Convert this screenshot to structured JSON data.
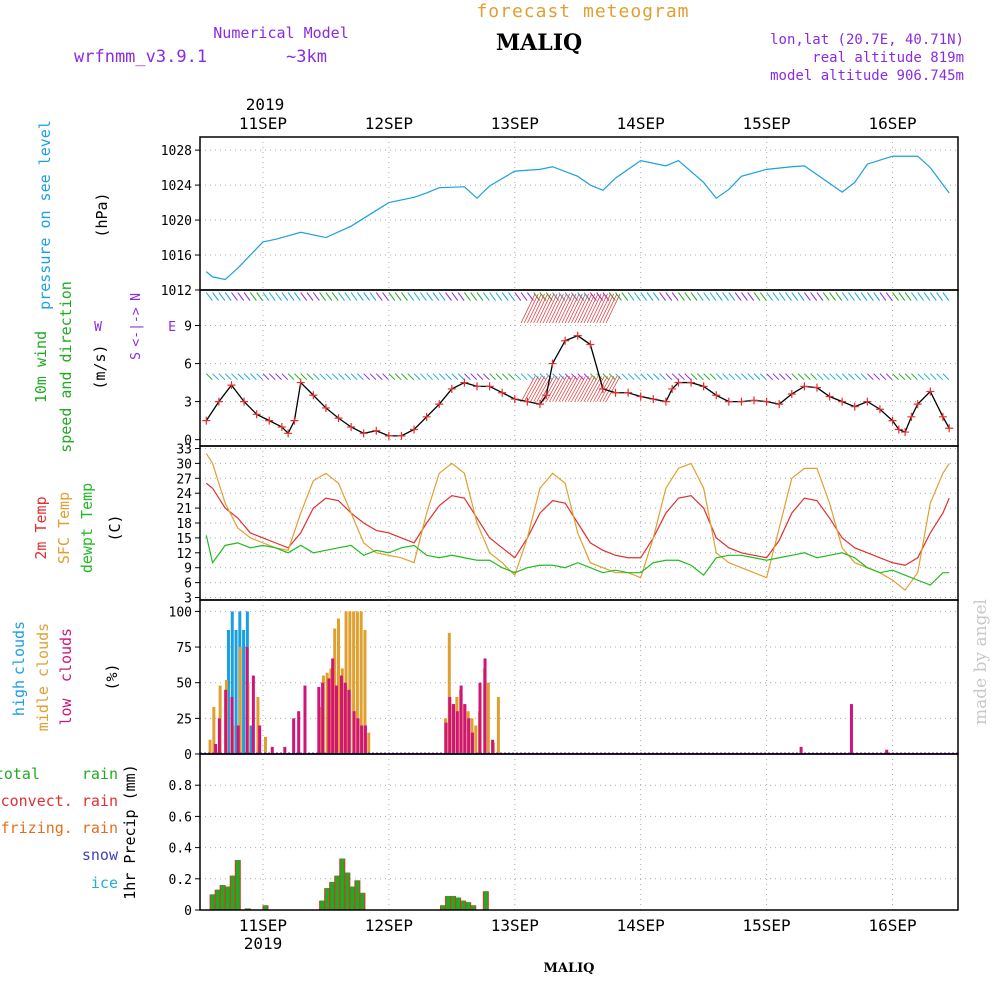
{
  "header": {
    "top_title": "forecast meteogram",
    "model_label": "Numerical Model",
    "model_name": "wrfnmm_v3.9.1",
    "resolution": "~3km",
    "station": "MALIQ",
    "coords": "lon,lat (20.7E, 40.71N)",
    "real_altitude": "real altitude 819m",
    "model_altitude": "model altitude  906.745m",
    "credit": "made by angel",
    "bottom_station": "MALIQ"
  },
  "colors": {
    "pressure": "#1aa0e0",
    "wind_label": "#22aa22",
    "compass": "#8a2be2",
    "temp_2m": "#e03030",
    "temp_sfc": "#e0a030",
    "dewpt": "#22bb22",
    "high_clouds": "#1aa0e0",
    "mid_clouds": "#e0a030",
    "low_clouds": "#d0147a",
    "total_rain": "#22aa22",
    "convect_rain": "#e03030",
    "frizing_rain": "#e07020",
    "snow": "#4040c0",
    "ice": "#20b0d0",
    "header_purple": "#8a2be2",
    "header_orange": "#e0a030",
    "credit_gray": "#c8c8c8"
  },
  "time_axis": {
    "year": "2019",
    "days": [
      "11SEP",
      "12SEP",
      "13SEP",
      "14SEP",
      "15SEP",
      "16SEP"
    ]
  },
  "chart_data": [
    {
      "type": "line",
      "panel": "pressure",
      "labels": [
        "pressure on see level",
        "(hPa)"
      ],
      "yticks": [
        "1012",
        "1016",
        "1020",
        "1024",
        "1028"
      ],
      "ylim": [
        1012,
        1029.5
      ],
      "grid": true,
      "series": [
        {
          "key": "pressure",
          "x": [
            10.55,
            10.6,
            10.7,
            10.8,
            10.9,
            11.0,
            11.1,
            11.2,
            11.3,
            11.5,
            11.7,
            11.9,
            12.0,
            12.2,
            12.3,
            12.4,
            12.6,
            12.7,
            12.8,
            13.0,
            13.2,
            13.3,
            13.5,
            13.6,
            13.7,
            13.8,
            14.0,
            14.2,
            14.3,
            14.5,
            14.6,
            14.7,
            14.8,
            15.0,
            15.2,
            15.3,
            15.5,
            15.6,
            15.7,
            15.8,
            16.0,
            16.2,
            16.3,
            16.45
          ],
          "values": [
            1014.1,
            1013.5,
            1013.2,
            1014.5,
            1016.0,
            1017.5,
            1017.8,
            1018.2,
            1018.6,
            1018.0,
            1019.3,
            1021.1,
            1022.0,
            1022.6,
            1023.1,
            1023.7,
            1023.8,
            1022.5,
            1023.9,
            1025.6,
            1025.8,
            1026.1,
            1025.0,
            1024.0,
            1023.4,
            1024.8,
            1026.8,
            1026.2,
            1026.8,
            1024.3,
            1022.5,
            1023.5,
            1025.0,
            1025.8,
            1026.1,
            1026.2,
            1024.2,
            1023.2,
            1024.3,
            1026.4,
            1027.3,
            1027.3,
            1026.0,
            1023.1
          ]
        }
      ]
    },
    {
      "type": "line",
      "panel": "wind",
      "labels": [
        "10m wind",
        "speed and direction",
        "(m/s)"
      ],
      "compass": [
        "N",
        "W",
        "E",
        "S"
      ],
      "yticks": [
        "0",
        "3",
        "6",
        "9"
      ],
      "ylim": [
        -0.5,
        11.8
      ],
      "grid": true,
      "series": [
        {
          "key": "wind_speed",
          "x": [
            10.55,
            10.65,
            10.75,
            10.85,
            10.95,
            11.05,
            11.15,
            11.2,
            11.25,
            11.3,
            11.4,
            11.5,
            11.6,
            11.7,
            11.8,
            11.9,
            12.0,
            12.1,
            12.2,
            12.3,
            12.4,
            12.5,
            12.6,
            12.7,
            12.8,
            12.9,
            13.0,
            13.1,
            13.2,
            13.25,
            13.3,
            13.4,
            13.5,
            13.6,
            13.7,
            13.8,
            13.9,
            14.0,
            14.1,
            14.2,
            14.25,
            14.3,
            14.4,
            14.5,
            14.6,
            14.7,
            14.8,
            14.9,
            15.0,
            15.1,
            15.2,
            15.3,
            15.4,
            15.5,
            15.6,
            15.7,
            15.8,
            15.9,
            16.0,
            16.05,
            16.1,
            16.15,
            16.2,
            16.3,
            16.4,
            16.45
          ],
          "values": [
            1.5,
            3.0,
            4.3,
            3.0,
            2.0,
            1.5,
            1.0,
            0.5,
            1.5,
            4.5,
            3.5,
            2.5,
            1.7,
            1.0,
            0.5,
            0.7,
            0.3,
            0.3,
            0.8,
            1.8,
            2.8,
            4.0,
            4.5,
            4.2,
            4.2,
            3.7,
            3.2,
            3.0,
            2.8,
            3.5,
            6.0,
            7.8,
            8.2,
            7.5,
            4.0,
            3.7,
            3.7,
            3.4,
            3.2,
            3.0,
            4.0,
            4.5,
            4.5,
            4.2,
            3.5,
            3.0,
            3.0,
            3.1,
            3.0,
            2.8,
            3.6,
            4.2,
            4.1,
            3.4,
            3.0,
            2.6,
            3.0,
            2.4,
            1.5,
            0.8,
            0.6,
            1.8,
            2.8,
            3.8,
            1.8,
            0.9
          ]
        }
      ]
    },
    {
      "type": "line",
      "panel": "temperature",
      "labels": [
        "2m Temp",
        "SFC Temp",
        "dewpt Temp",
        "(C)"
      ],
      "yticks": [
        "3",
        "6",
        "9",
        "12",
        "15",
        "18",
        "21",
        "24",
        "27",
        "30",
        "33"
      ],
      "ylim": [
        2.5,
        33.5
      ],
      "grid": true,
      "series": [
        {
          "key": "temp_2m",
          "x": [
            10.55,
            10.6,
            10.7,
            10.8,
            10.9,
            11.0,
            11.1,
            11.2,
            11.3,
            11.4,
            11.5,
            11.6,
            11.7,
            11.8,
            11.9,
            12.0,
            12.1,
            12.2,
            12.3,
            12.4,
            12.5,
            12.6,
            12.7,
            12.8,
            12.9,
            13.0,
            13.1,
            13.2,
            13.3,
            13.4,
            13.5,
            13.6,
            13.7,
            13.8,
            13.9,
            14.0,
            14.1,
            14.2,
            14.3,
            14.4,
            14.5,
            14.6,
            14.7,
            14.8,
            14.9,
            15.0,
            15.1,
            15.2,
            15.3,
            15.4,
            15.5,
            15.6,
            15.7,
            15.8,
            15.9,
            16.0,
            16.1,
            16.2,
            16.3,
            16.4,
            16.45
          ],
          "values": [
            26,
            25,
            21,
            19,
            16,
            15,
            14,
            13,
            16,
            21,
            23,
            22.5,
            20,
            18,
            16.5,
            16,
            15,
            14,
            18,
            21.5,
            23.5,
            23,
            19,
            15,
            13,
            11,
            15,
            20,
            22.5,
            22,
            18,
            14,
            12.5,
            11.5,
            11,
            11,
            15,
            20,
            23,
            23.5,
            21,
            15,
            13,
            12,
            11.5,
            11,
            14.5,
            20,
            23,
            22.5,
            19,
            15,
            13,
            12,
            11,
            10,
            9.5,
            11,
            16,
            20,
            23
          ]
        },
        {
          "key": "temp_sfc",
          "x": [
            10.55,
            10.6,
            10.7,
            10.8,
            10.9,
            11.0,
            11.1,
            11.2,
            11.3,
            11.4,
            11.5,
            11.6,
            11.7,
            11.8,
            11.9,
            12.0,
            12.1,
            12.2,
            12.3,
            12.4,
            12.5,
            12.6,
            12.7,
            12.8,
            12.9,
            13.0,
            13.1,
            13.2,
            13.3,
            13.4,
            13.5,
            13.6,
            13.7,
            13.8,
            13.9,
            14.0,
            14.1,
            14.2,
            14.3,
            14.4,
            14.5,
            14.6,
            14.7,
            14.8,
            14.9,
            15.0,
            15.1,
            15.2,
            15.3,
            15.4,
            15.5,
            15.6,
            15.7,
            15.8,
            15.9,
            16.0,
            16.1,
            16.2,
            16.3,
            16.4,
            16.45
          ],
          "values": [
            32,
            30,
            22,
            17,
            15,
            14,
            13,
            12.5,
            20,
            26.5,
            28,
            26,
            20,
            14,
            12,
            11.5,
            11,
            10,
            20,
            28,
            30,
            28,
            18,
            12,
            10,
            7.5,
            15,
            25,
            28,
            26,
            16,
            10,
            9,
            8,
            8,
            7,
            15,
            25,
            29,
            30,
            25,
            12,
            10,
            9,
            8,
            7,
            17,
            27,
            29,
            29,
            22,
            13,
            10,
            9,
            8,
            6.5,
            4.5,
            8,
            22,
            28,
            30
          ]
        },
        {
          "key": "dewpt",
          "x": [
            10.55,
            10.6,
            10.7,
            10.8,
            10.9,
            11.0,
            11.1,
            11.2,
            11.3,
            11.4,
            11.5,
            11.6,
            11.7,
            11.8,
            11.9,
            12.0,
            12.1,
            12.2,
            12.3,
            12.4,
            12.5,
            12.6,
            12.7,
            12.8,
            12.9,
            13.0,
            13.1,
            13.2,
            13.3,
            13.4,
            13.5,
            13.6,
            13.7,
            13.8,
            13.9,
            14.0,
            14.1,
            14.2,
            14.3,
            14.4,
            14.5,
            14.6,
            14.7,
            14.8,
            14.9,
            15.0,
            15.1,
            15.2,
            15.3,
            15.4,
            15.5,
            15.6,
            15.7,
            15.8,
            15.9,
            16.0,
            16.1,
            16.2,
            16.3,
            16.4,
            16.45
          ],
          "values": [
            15.5,
            10,
            13.5,
            14,
            13,
            13.5,
            13,
            12,
            13.5,
            12,
            12.5,
            13,
            13.5,
            11.5,
            12.5,
            12,
            13,
            13.5,
            11.5,
            11,
            11.5,
            11,
            10.5,
            10.5,
            9,
            8,
            9,
            9.5,
            9.5,
            9,
            10,
            9,
            8,
            8.5,
            8,
            8,
            10,
            10.5,
            10.5,
            9.5,
            7.5,
            11,
            11.5,
            11.5,
            11,
            10.5,
            11,
            11.5,
            12,
            11,
            11.5,
            12,
            11,
            9,
            8,
            8.5,
            7.5,
            6.5,
            5.5,
            8,
            8
          ]
        }
      ]
    },
    {
      "type": "bar",
      "panel": "clouds",
      "labels": [
        "high",
        "clouds",
        "midle clouds",
        "low",
        "clouds",
        "(%)"
      ],
      "yticks": [
        "0",
        "25",
        "50",
        "75",
        "100"
      ],
      "ylim": [
        0,
        108
      ],
      "grid": true,
      "series": [
        {
          "key": "high_clouds",
          "x": [
            10.75,
            10.78,
            10.81,
            10.84,
            10.87,
            10.9,
            10.93
          ],
          "values": [
            87,
            100,
            87,
            100,
            87,
            100,
            20
          ]
        },
        {
          "key": "mid_clouds",
          "x": [
            10.58,
            10.61,
            10.66,
            10.71,
            10.76,
            10.82,
            10.88,
            10.96,
            11.02,
            11.45,
            11.48,
            11.51,
            11.54,
            11.57,
            11.6,
            11.63,
            11.66,
            11.69,
            11.72,
            11.75,
            11.78,
            11.81,
            11.84,
            12.45,
            12.48,
            12.51,
            12.54,
            12.57,
            12.6,
            12.63,
            12.66,
            12.69,
            12.72,
            12.76,
            12.79,
            12.83,
            12.87
          ],
          "values": [
            10,
            33,
            48,
            52,
            20,
            75,
            50,
            40,
            12,
            33,
            55,
            57,
            60,
            88,
            95,
            60,
            100,
            100,
            100,
            100,
            100,
            87,
            15,
            25,
            85,
            35,
            40,
            45,
            35,
            30,
            25,
            20,
            30,
            60,
            50,
            8,
            40
          ]
        },
        {
          "key": "low_clouds",
          "x": [
            10.6,
            10.63,
            10.68,
            10.73,
            10.78,
            10.85,
            10.9,
            10.95,
            11.05,
            11.15,
            11.22,
            11.26,
            11.31,
            11.42,
            11.45,
            11.5,
            11.53,
            11.56,
            11.6,
            11.63,
            11.66,
            11.7,
            11.73,
            11.76,
            11.79,
            12.43,
            12.46,
            12.49,
            12.52,
            12.55,
            12.58,
            12.61,
            12.64,
            12.7,
            12.74,
            12.8,
            15.25,
            15.65,
            15.93
          ],
          "values": [
            7,
            25,
            45,
            40,
            20,
            75,
            55,
            20,
            5,
            5,
            25,
            30,
            48,
            47,
            50,
            53,
            67,
            48,
            55,
            50,
            45,
            30,
            25,
            20,
            20,
            22,
            40,
            35,
            30,
            48,
            35,
            25,
            15,
            50,
            67,
            10,
            5,
            35,
            3
          ]
        }
      ]
    },
    {
      "type": "bar",
      "panel": "precip",
      "labels": [
        "total",
        "rain",
        "convect. rain",
        "frizing. rain",
        "snow",
        "ice",
        "1hr Precip (mm)"
      ],
      "yticks": [
        "0",
        "0.2",
        "0.4",
        "0.6",
        "0.8"
      ],
      "ylim": [
        0,
        1.0
      ],
      "grid": true,
      "series": [
        {
          "key": "total_rain",
          "x": [
            10.6,
            10.64,
            10.68,
            10.72,
            10.76,
            10.8,
            10.88,
            11.02,
            11.47,
            11.51,
            11.55,
            11.59,
            11.63,
            11.67,
            11.71,
            11.75,
            11.79,
            12.43,
            12.47,
            12.51,
            12.55,
            12.59,
            12.63,
            12.67,
            12.77
          ],
          "values": [
            0.1,
            0.13,
            0.16,
            0.15,
            0.22,
            0.32,
            0.01,
            0.03,
            0.06,
            0.14,
            0.18,
            0.22,
            0.33,
            0.24,
            0.15,
            0.19,
            0.11,
            0.03,
            0.09,
            0.09,
            0.08,
            0.06,
            0.05,
            0.03,
            0.12
          ]
        }
      ]
    }
  ]
}
